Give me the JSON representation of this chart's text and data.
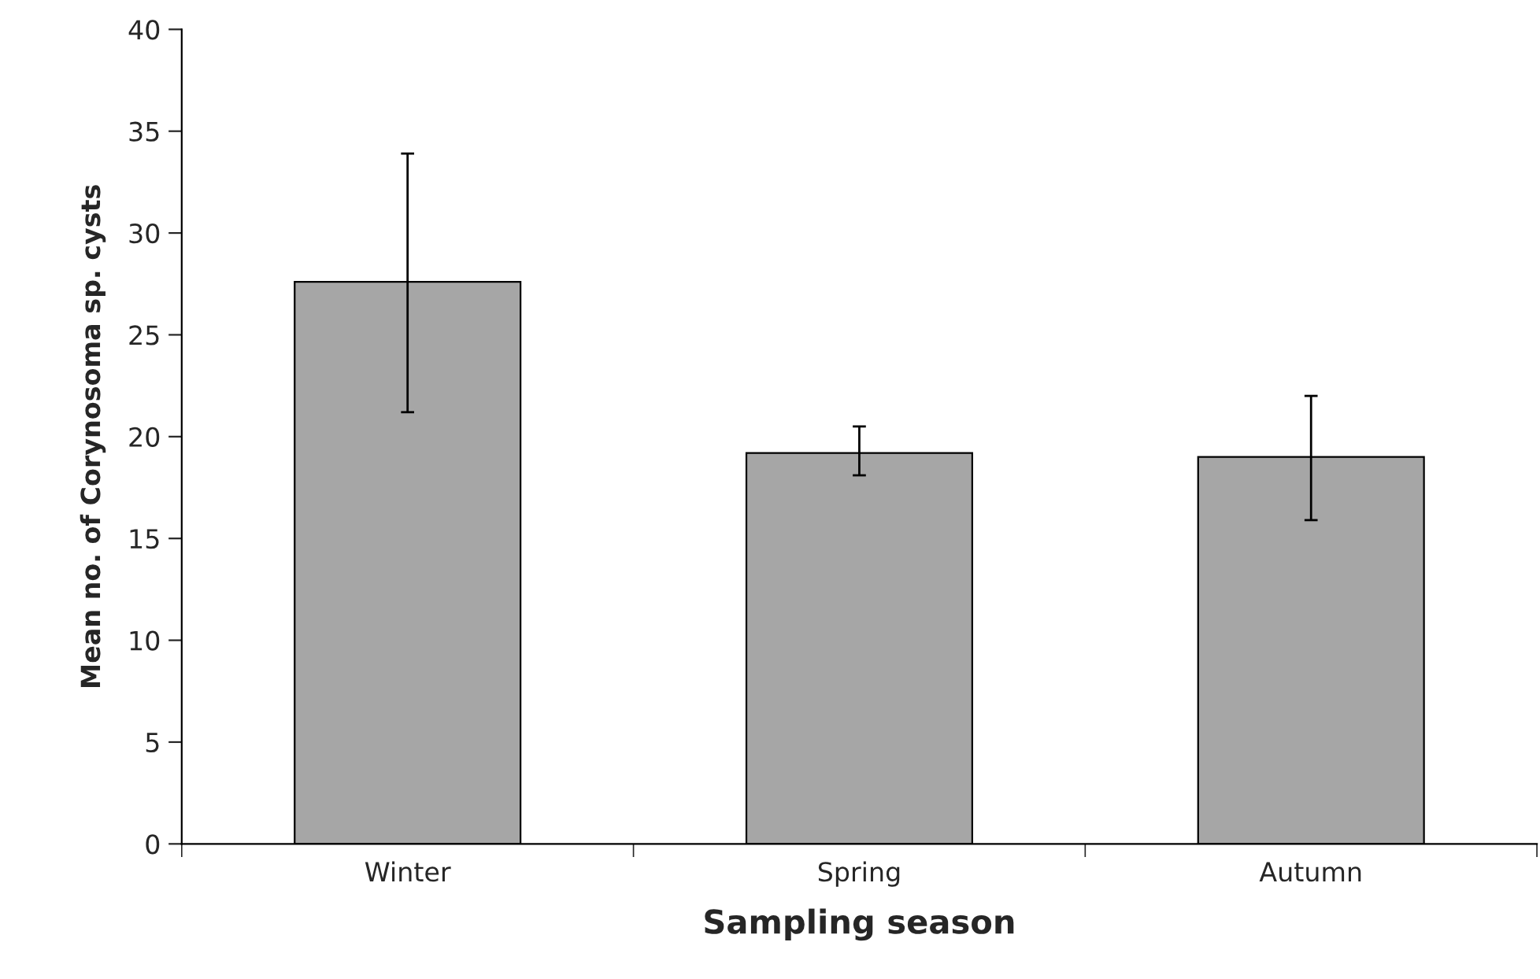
{
  "chart_data": {
    "type": "bar",
    "xlabel": "Sampling season",
    "ylabel": "Mean no. of Corynosoma sp. cysts",
    "categories": [
      "Winter",
      "Spring",
      "Autumn"
    ],
    "values": [
      27.6,
      19.2,
      19.0
    ],
    "color": "#a6a6a6",
    "errors": [
      [
        21.2,
        33.9
      ],
      [
        18.1,
        20.5
      ],
      [
        15.9,
        22.0
      ]
    ],
    "ylim": [
      0,
      40
    ],
    "yticks": [
      0,
      5,
      10,
      15,
      20,
      25,
      30,
      35,
      40
    ],
    "grid": false
  }
}
